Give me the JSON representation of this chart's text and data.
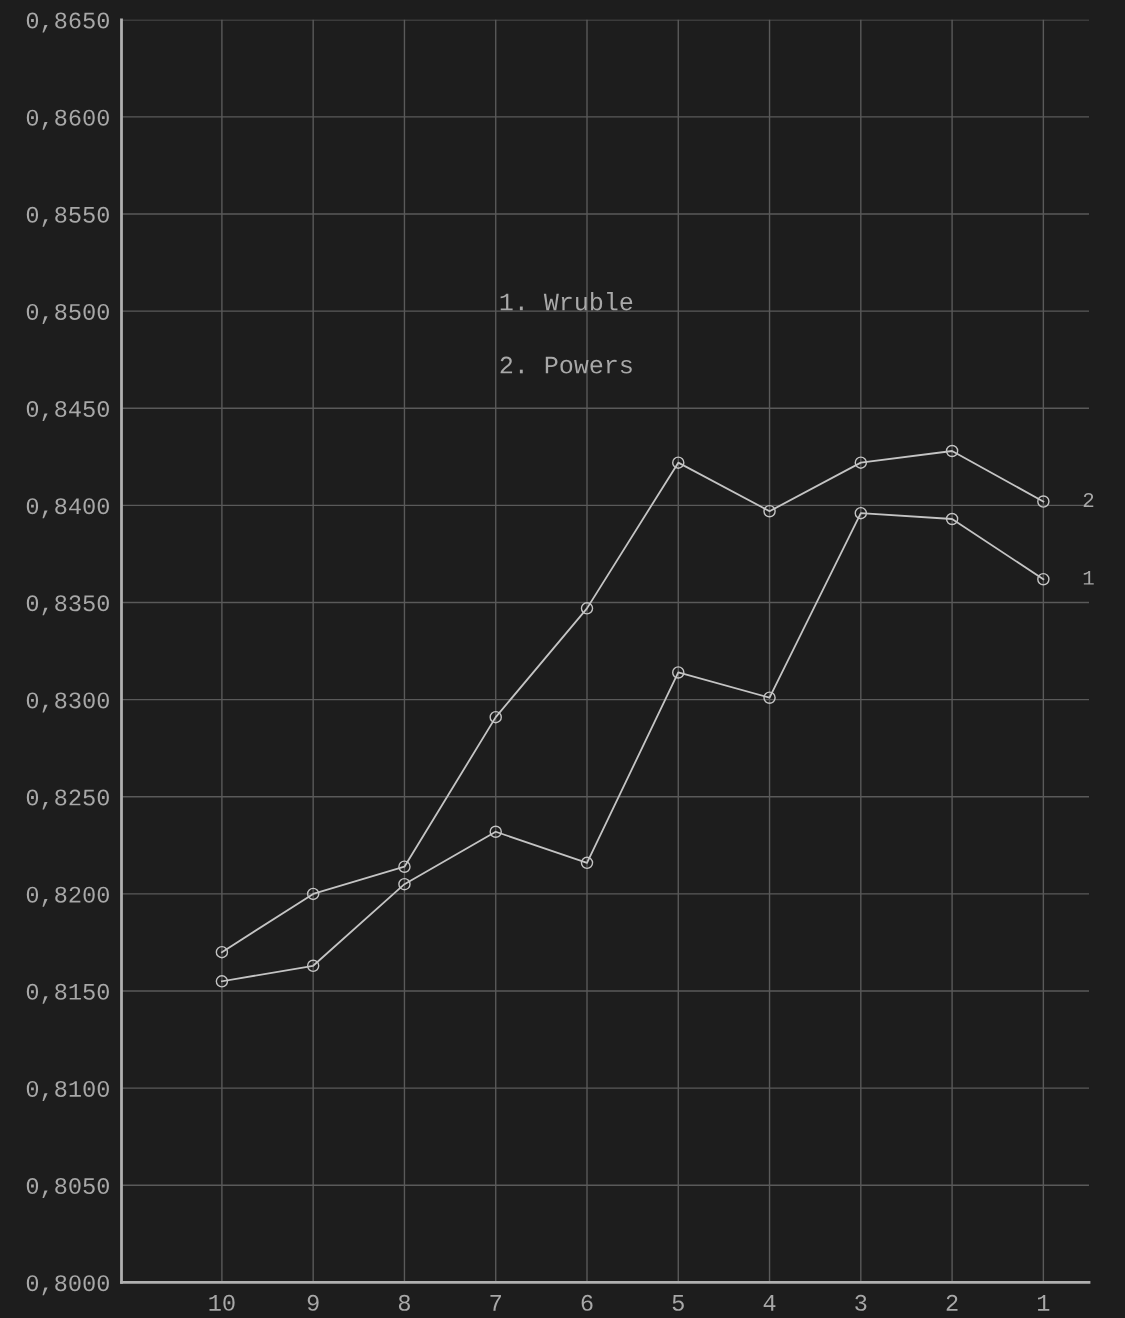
{
  "chart_data": {
    "type": "line",
    "categories": [
      "10",
      "9",
      "8",
      "7",
      "6",
      "5",
      "4",
      "3",
      "2",
      "1"
    ],
    "series": [
      {
        "name": "1",
        "color": "#c4c4c4",
        "values": [
          0.8155,
          0.8163,
          0.8205,
          0.8232,
          0.8216,
          0.8314,
          0.8301,
          0.8396,
          0.8393,
          0.8362
        ]
      },
      {
        "name": "2",
        "color": "#c4c4c4",
        "values": [
          0.817,
          0.82,
          0.8214,
          0.8291,
          0.8347,
          0.8422,
          0.8397,
          0.8422,
          0.8428,
          0.8402
        ]
      }
    ],
    "ylim": [
      0.8,
      0.865
    ],
    "yticks": [
      {
        "value": 0.8,
        "label": "0,8000"
      },
      {
        "value": 0.805,
        "label": "0,8050"
      },
      {
        "value": 0.81,
        "label": "0,8100"
      },
      {
        "value": 0.815,
        "label": "0,8150"
      },
      {
        "value": 0.82,
        "label": "0,8200"
      },
      {
        "value": 0.825,
        "label": "0,8250"
      },
      {
        "value": 0.83,
        "label": "0,8300"
      },
      {
        "value": 0.835,
        "label": "0,8350"
      },
      {
        "value": 0.84,
        "label": "0,8400"
      },
      {
        "value": 0.845,
        "label": "0,8450"
      },
      {
        "value": 0.85,
        "label": "0,8500"
      },
      {
        "value": 0.855,
        "label": "0,8550"
      },
      {
        "value": 0.86,
        "label": "0,8600"
      },
      {
        "value": 0.865,
        "label": "0,8650"
      }
    ],
    "annotations": [
      "1. Wruble",
      "2. Powers"
    ],
    "grid": true,
    "marker": "circle",
    "line_style": "solid",
    "legend": false
  }
}
